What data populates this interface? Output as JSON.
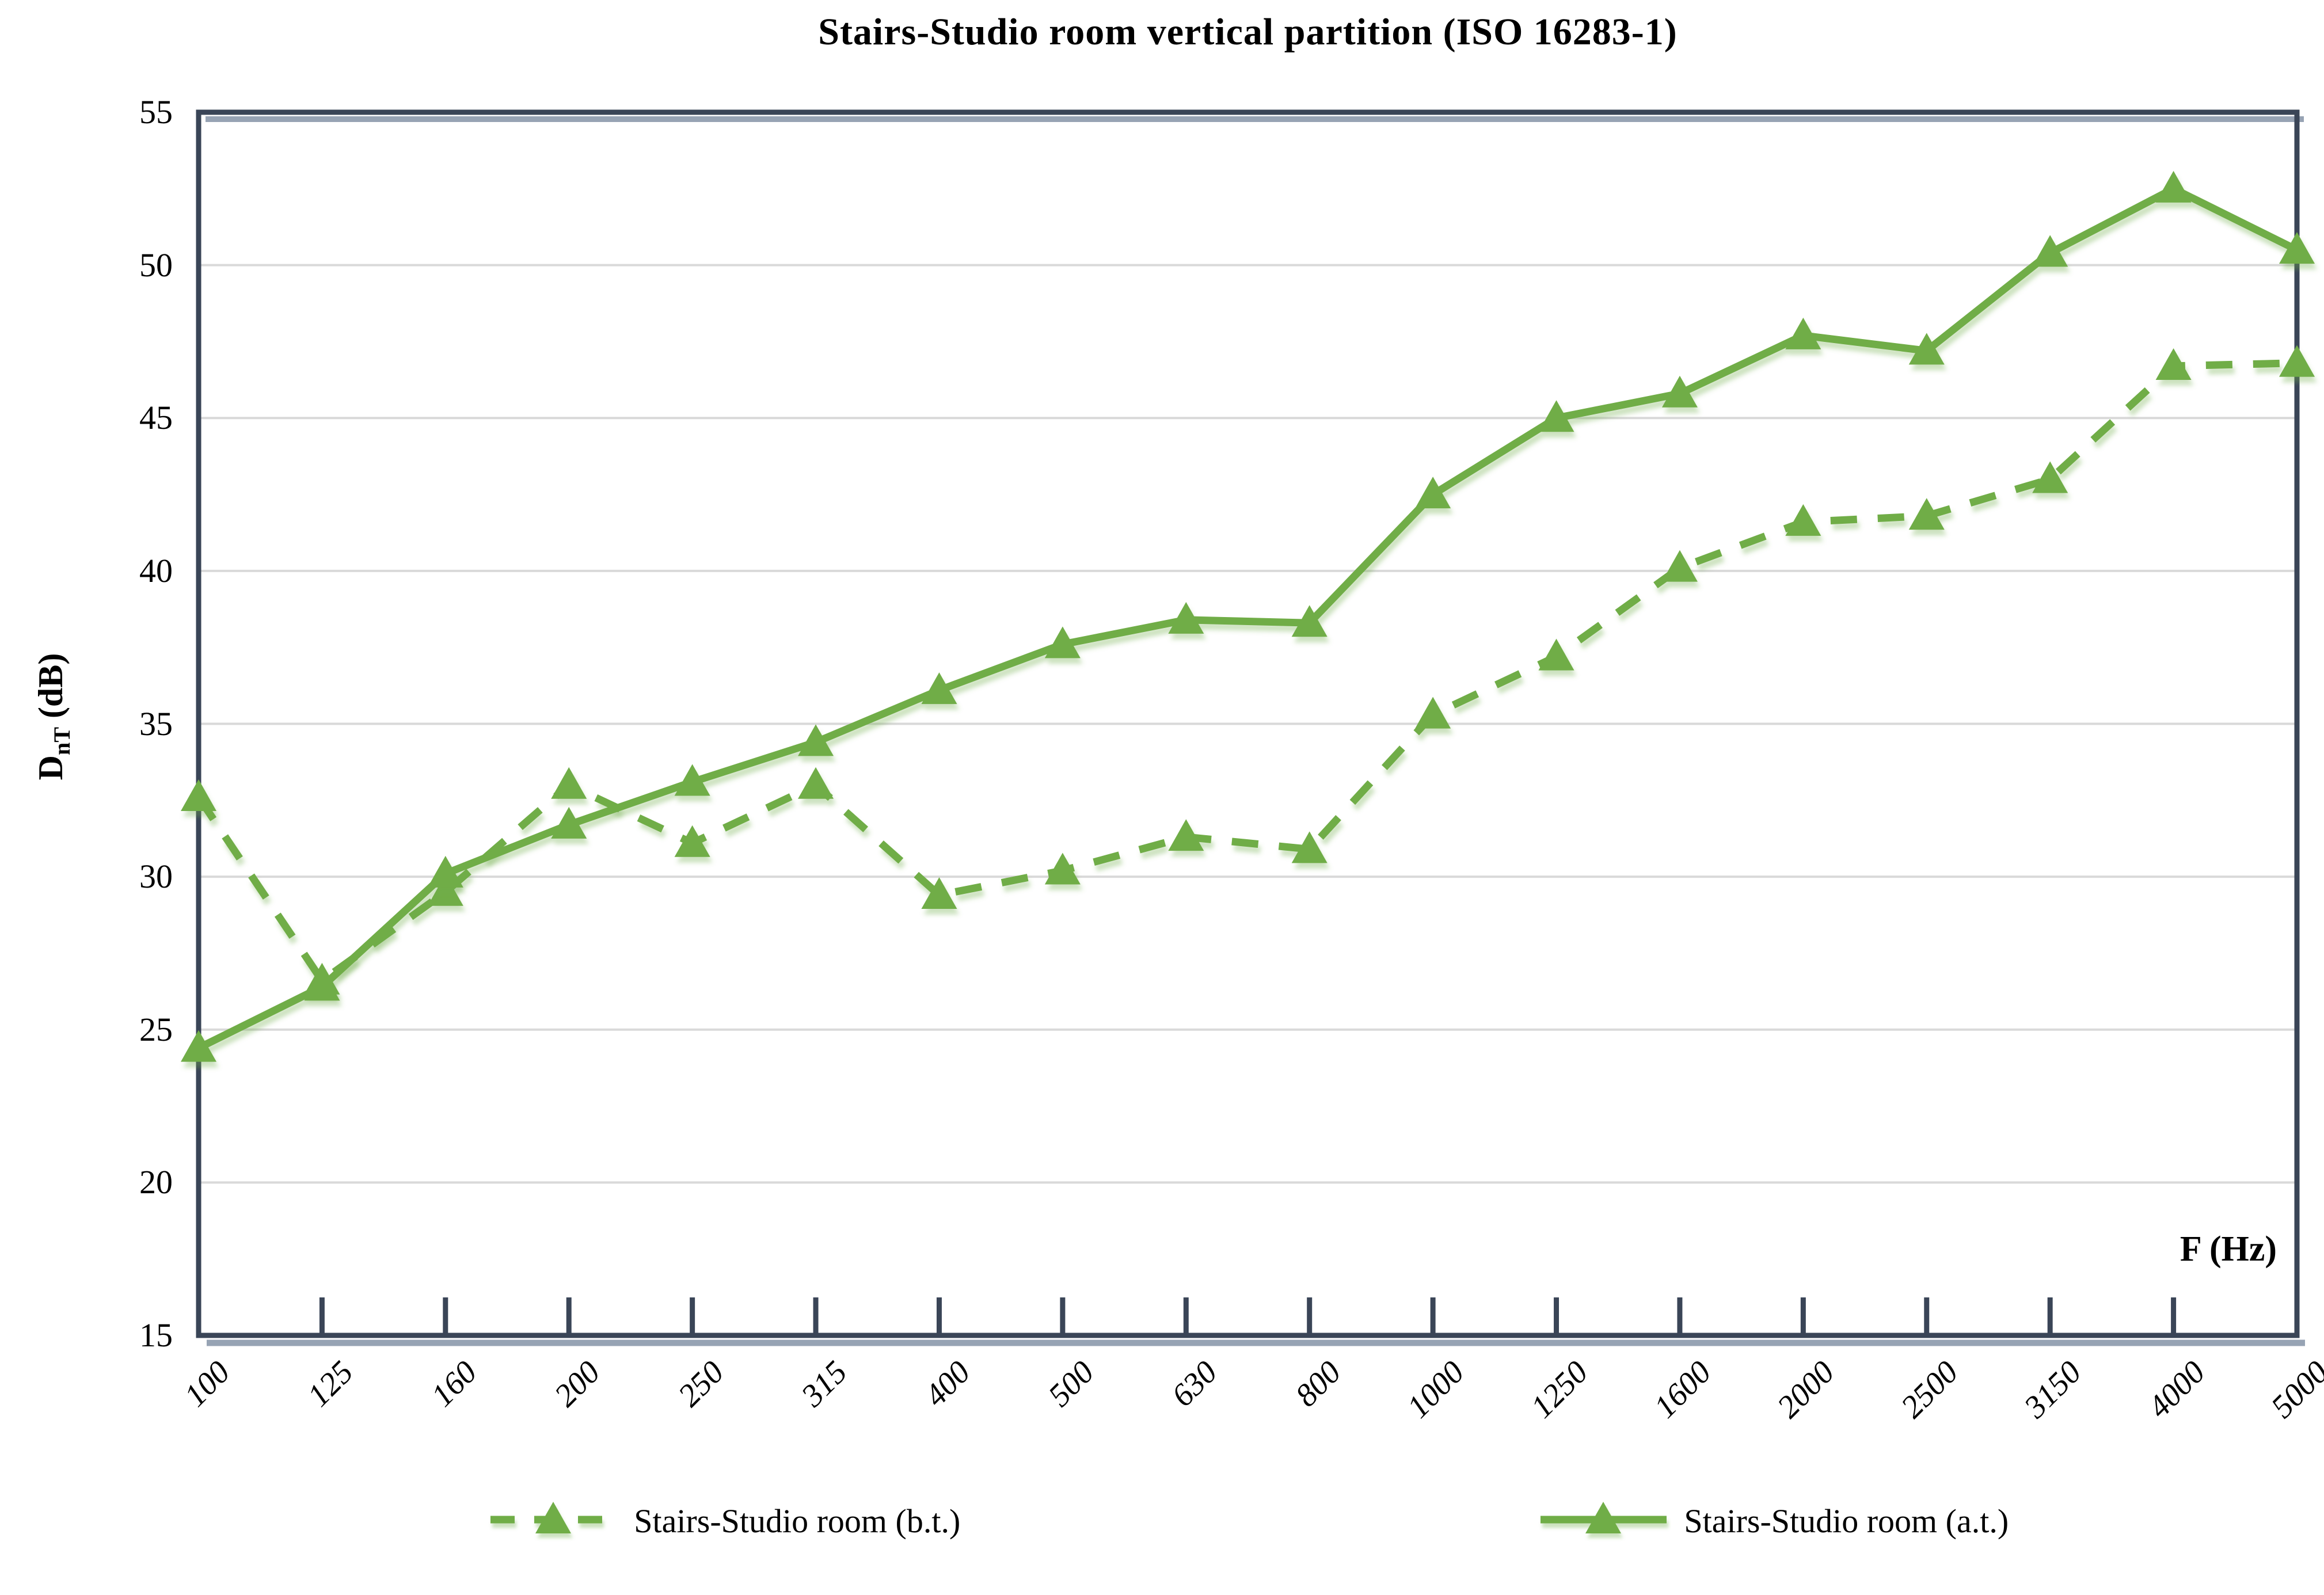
{
  "title": "Stairs-Studio room vertical partition (ISO 16283-1)",
  "colors": {
    "series_green": "#70AD47",
    "series_shadow": "#70AD47",
    "gridline": "#D9D9D9",
    "axis_border": "#3A4557",
    "axis_shadow": "#97A3B4",
    "text": "#000000"
  },
  "y_axis": {
    "label_prefix": "D",
    "label_sub": "nT",
    "label_suffix": " (dB)",
    "ticks": [
      15,
      20,
      25,
      30,
      35,
      40,
      45,
      50,
      55
    ]
  },
  "x_axis": {
    "label": "F (Hz)"
  },
  "legend": [
    {
      "label": "Stairs-Studio room (b.t.)",
      "style": "dashed"
    },
    {
      "label": "Stairs-Studio room (a.t.)",
      "style": "solid"
    }
  ],
  "chart_data": {
    "type": "line",
    "title": "Stairs-Studio room vertical partition (ISO 16283-1)",
    "xlabel": "F (Hz)",
    "ylabel": "DnT (dB)",
    "ylim": [
      15,
      55
    ],
    "grid": true,
    "legend_position": "bottom",
    "categories": [
      "100",
      "125",
      "160",
      "200",
      "250",
      "315",
      "400",
      "500",
      "630",
      "800",
      "1000",
      "1250",
      "1600",
      "2000",
      "2500",
      "3150",
      "4000",
      "5000"
    ],
    "series": [
      {
        "name": "Stairs-Studio room (b.t.)",
        "style": "dashed",
        "marker": "triangle",
        "values": [
          32.6,
          26.6,
          29.5,
          33.0,
          31.1,
          33.0,
          29.4,
          30.2,
          31.3,
          30.9,
          35.3,
          37.2,
          40.1,
          41.6,
          41.8,
          43.0,
          46.7,
          46.8
        ]
      },
      {
        "name": "Stairs-Studio room (a.t.)",
        "style": "solid",
        "marker": "triangle",
        "values": [
          24.4,
          26.4,
          30.1,
          31.7,
          33.1,
          34.4,
          36.1,
          37.6,
          38.4,
          38.3,
          42.5,
          45.0,
          45.8,
          47.7,
          47.2,
          50.4,
          52.5,
          50.5
        ]
      }
    ]
  }
}
